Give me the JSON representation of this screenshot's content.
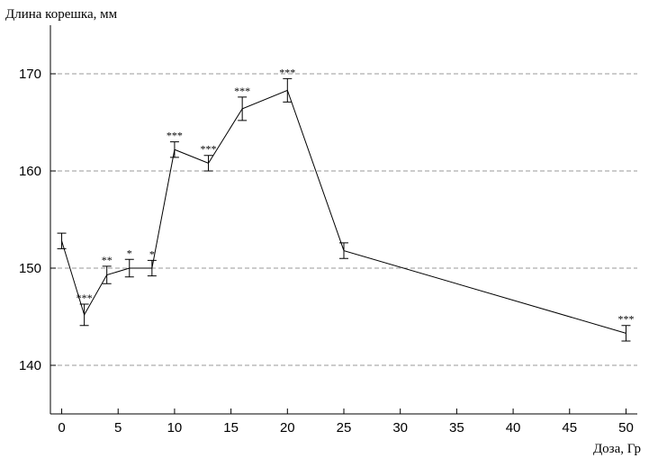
{
  "chart_data": {
    "type": "line",
    "y_label": "Длина корешка, мм",
    "x_label": "Доза, Гр",
    "x": [
      0,
      2,
      4,
      6,
      8,
      10,
      13,
      16,
      20,
      25,
      50
    ],
    "series": [
      {
        "color": "#000000",
        "values": [
          152.8,
          145.2,
          149.3,
          150.0,
          150.0,
          162.2,
          160.8,
          166.4,
          168.3,
          151.8,
          143.3
        ],
        "errors": [
          0.8,
          1.1,
          0.9,
          0.9,
          0.8,
          0.8,
          0.8,
          1.2,
          1.2,
          0.8,
          0.8
        ],
        "value_labels": [
          null,
          "***",
          "**",
          "*",
          "*",
          "***",
          "***",
          "***",
          "***",
          null,
          "***"
        ]
      }
    ],
    "xlim": [
      -1,
      51
    ],
    "ylim": [
      135,
      175
    ],
    "xticks": [
      0,
      5,
      10,
      15,
      20,
      25,
      30,
      35,
      40,
      45,
      50
    ],
    "yticks": [
      140,
      150,
      160,
      170
    ],
    "grid": true
  }
}
